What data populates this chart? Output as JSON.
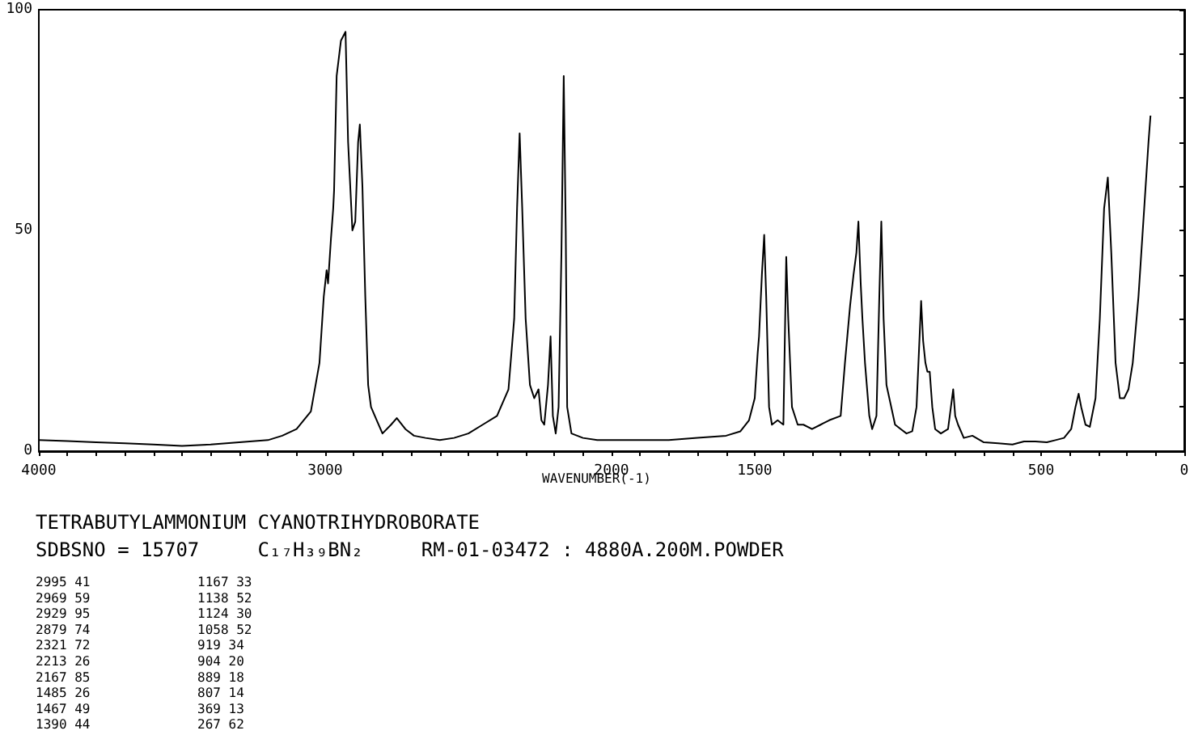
{
  "chart_data": {
    "type": "line",
    "title": "TETRABUTYLAMMONIUM CYANOTRIHYDROBORATE",
    "subtitle": "SDBSNO = 15707     C₁₇H₃₉BN₂     RM-01-03472 : 4880A.200M.POWDER",
    "xlabel": "WAVENUMBER(-1)",
    "annotations": [
      "2995 41",
      "2969 59",
      "2929 95",
      "2879 74",
      "2321 72",
      "2213 26",
      "2167 85",
      "1485 26",
      "1467 49",
      "1390 44",
      "1167 33",
      "1138 52",
      "1124 30",
      "1058 52",
      "919 34",
      "904 20",
      "889 18",
      "807 14",
      "369 13",
      "267 62"
    ],
    "x": [
      4000,
      3900,
      3800,
      3700,
      3600,
      3500,
      3400,
      3300,
      3200,
      3150,
      3100,
      3050,
      3020,
      3005,
      2995,
      2990,
      2980,
      2972,
      2969,
      2960,
      2945,
      2929,
      2920,
      2905,
      2895,
      2885,
      2879,
      2870,
      2860,
      2850,
      2840,
      2820,
      2800,
      2770,
      2750,
      2720,
      2690,
      2650,
      2600,
      2550,
      2500,
      2450,
      2400,
      2360,
      2340,
      2330,
      2321,
      2312,
      2300,
      2285,
      2270,
      2255,
      2245,
      2235,
      2222,
      2213,
      2205,
      2195,
      2185,
      2175,
      2167,
      2160,
      2155,
      2140,
      2100,
      2050,
      2000,
      1900,
      1800,
      1700,
      1600,
      1550,
      1520,
      1500,
      1490,
      1485,
      1475,
      1467,
      1460,
      1450,
      1440,
      1420,
      1400,
      1395,
      1390,
      1383,
      1370,
      1350,
      1330,
      1300,
      1270,
      1240,
      1200,
      1185,
      1167,
      1155,
      1145,
      1138,
      1130,
      1124,
      1115,
      1100,
      1090,
      1075,
      1065,
      1058,
      1050,
      1040,
      1030,
      1010,
      990,
      970,
      950,
      935,
      925,
      919,
      912,
      904,
      897,
      889,
      880,
      870,
      850,
      825,
      815,
      807,
      800,
      790,
      770,
      740,
      700,
      650,
      600,
      560,
      520,
      480,
      450,
      420,
      395,
      380,
      369,
      360,
      345,
      330,
      310,
      295,
      280,
      267,
      255,
      240,
      225,
      210,
      195,
      180,
      160,
      140,
      125,
      118
    ],
    "series": [
      {
        "color": "#000000",
        "values": [
          2.5,
          2.3,
          2,
          1.8,
          1.5,
          1.2,
          1.5,
          2,
          2.5,
          3.5,
          5,
          9,
          20,
          35,
          41,
          38,
          48,
          55,
          59,
          85,
          93,
          95,
          70,
          50,
          52,
          70,
          74,
          60,
          35,
          15,
          10,
          7,
          4,
          6,
          7.5,
          5,
          3.5,
          3,
          2.5,
          3,
          4,
          6,
          8,
          14,
          30,
          55,
          72,
          55,
          30,
          15,
          12,
          14,
          7,
          6,
          15,
          26,
          8,
          4,
          10,
          45,
          85,
          50,
          10,
          4,
          3,
          2.5,
          2.5,
          2.5,
          2.5,
          3,
          3.5,
          4.5,
          7,
          12,
          22,
          26,
          40,
          49,
          35,
          10,
          6,
          7,
          6,
          25,
          44,
          30,
          10,
          6,
          6,
          5,
          6,
          7,
          8,
          20,
          33,
          40,
          45,
          52,
          38,
          30,
          20,
          8,
          5,
          8,
          35,
          52,
          30,
          15,
          12,
          6,
          5,
          4,
          4.5,
          10,
          25,
          34,
          25,
          20,
          18,
          18,
          10,
          5,
          4,
          5,
          10,
          14,
          8,
          6,
          3,
          3.5,
          2,
          1.8,
          1.5,
          2.2,
          2.2,
          2,
          2.5,
          3,
          5,
          10,
          13,
          10,
          6,
          5.5,
          12,
          30,
          55,
          62,
          45,
          20,
          12,
          12,
          14,
          20,
          35,
          55,
          70,
          76
        ]
      }
    ],
    "xlim": [
      4000,
      0
    ],
    "xticks": [
      4000,
      {
        "value": 3900,
        "label": null
      },
      {
        "value": 3800,
        "label": null
      },
      {
        "value": 3700,
        "label": null
      },
      {
        "value": 3600,
        "label": null
      },
      {
        "value": 3500,
        "label": null
      },
      {
        "value": 3400,
        "label": null
      },
      {
        "value": 3300,
        "label": null
      },
      {
        "value": 3200,
        "label": null
      },
      {
        "value": 3100,
        "label": null
      },
      3000,
      {
        "value": 2900,
        "label": null
      },
      {
        "value": 2800,
        "label": null
      },
      {
        "value": 2700,
        "label": null
      },
      {
        "value": 2600,
        "label": null
      },
      {
        "value": 2500,
        "label": null
      },
      {
        "value": 2400,
        "label": null
      },
      {
        "value": 2300,
        "label": null
      },
      {
        "value": 2200,
        "label": null
      },
      {
        "value": 2100,
        "label": null
      },
      2000,
      {
        "value": 1900,
        "label": null
      },
      {
        "value": 1800,
        "label": null
      },
      {
        "value": 1700,
        "label": null
      },
      {
        "value": 1600,
        "label": null
      },
      1500,
      {
        "value": 1400,
        "label": null
      },
      {
        "value": 1300,
        "label": null
      },
      {
        "value": 1200,
        "label": null
      },
      {
        "value": 1100,
        "label": null
      },
      {
        "value": 1000,
        "label": null
      },
      {
        "value": 900,
        "label": null
      },
      {
        "value": 800,
        "label": null
      },
      {
        "value": 700,
        "label": null
      },
      {
        "value": 600,
        "label": null
      },
      500,
      {
        "value": 400,
        "label": null
      },
      {
        "value": 300,
        "label": null
      },
      {
        "value": 200,
        "label": null
      },
      {
        "value": 100,
        "label": null
      },
      0
    ],
    "ylim": [
      0,
      100
    ],
    "yticks": [
      0,
      {
        "value": 10,
        "label": null
      },
      {
        "value": 20,
        "label": null
      },
      {
        "value": 30,
        "label": null
      },
      {
        "value": 40,
        "label": null
      },
      50,
      {
        "value": 60,
        "label": null
      },
      {
        "value": 70,
        "label": null
      },
      {
        "value": 80,
        "label": null
      },
      {
        "value": 90,
        "label": null
      },
      100
    ],
    "grid": false,
    "marker": "none",
    "line_style": "solid"
  }
}
